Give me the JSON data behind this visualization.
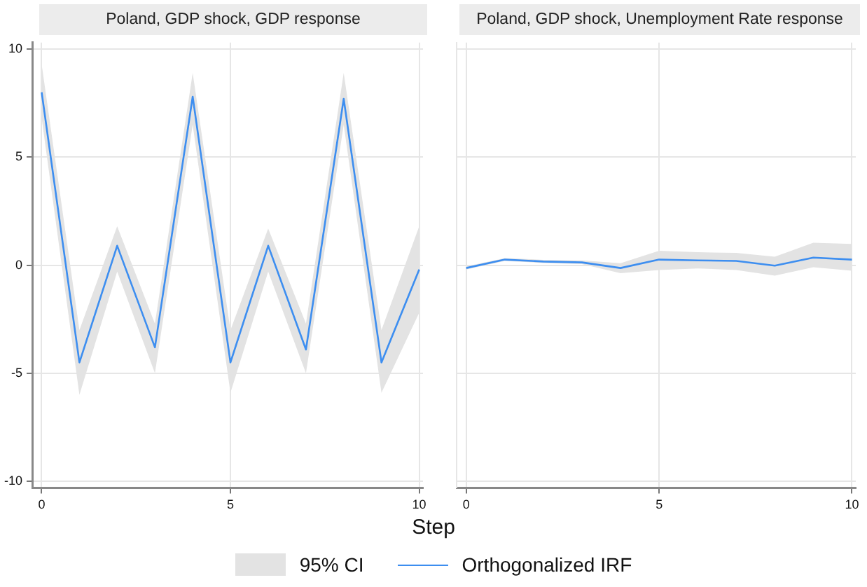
{
  "chart_data": [
    {
      "type": "line",
      "title": "Poland, GDP shock, GDP response",
      "xlabel": "Step",
      "annotations": [
        "95% CI"
      ],
      "x": [
        0,
        1,
        2,
        3,
        4,
        5,
        6,
        7,
        8,
        9,
        10
      ],
      "series": [
        {
          "name": "Orthogonalized IRF",
          "color": "#3d8ef0",
          "values": [
            8.0,
            -4.5,
            0.9,
            -3.8,
            7.8,
            -4.5,
            0.9,
            -3.9,
            7.7,
            -4.5,
            -0.2
          ],
          "lower": [
            6.8,
            -6.0,
            -0.3,
            -5.0,
            6.5,
            -5.9,
            -0.3,
            -5.0,
            6.5,
            -5.9,
            -2.2
          ],
          "upper": [
            9.3,
            -3.0,
            1.8,
            -2.7,
            8.9,
            -3.0,
            1.7,
            -2.7,
            8.9,
            -3.0,
            1.8
          ]
        }
      ],
      "xlim": [
        -0.25,
        10.1
      ],
      "xticks": [
        0,
        5,
        10
      ],
      "ylim": [
        -10.3,
        10.3
      ],
      "yticks": [
        -10,
        -5,
        0,
        5,
        10
      ],
      "grid": true,
      "legend": "bottom",
      "line_style": "solid",
      "marker": "none"
    },
    {
      "type": "line",
      "title": "Poland, GDP shock, Unemployment Rate response",
      "x": [
        0,
        1,
        2,
        3,
        4,
        5,
        6,
        7,
        8,
        9,
        10
      ],
      "series": [
        {
          "name": "Orthogonalized IRF",
          "color": "#3d8ef0",
          "values": [
            -0.13,
            0.26,
            0.17,
            0.13,
            -0.13,
            0.26,
            0.22,
            0.2,
            -0.02,
            0.35,
            0.26
          ],
          "lower": [
            -0.2,
            0.2,
            0.1,
            0.05,
            -0.37,
            -0.22,
            -0.15,
            -0.22,
            -0.48,
            -0.09,
            -0.26
          ],
          "upper": [
            -0.05,
            0.33,
            0.25,
            0.22,
            0.09,
            0.67,
            0.6,
            0.57,
            0.39,
            1.04,
            0.98
          ]
        }
      ],
      "xlim": [
        -0.25,
        10.1
      ],
      "xticks": [
        0,
        5,
        10
      ],
      "ylim": [
        -10.3,
        10.3
      ],
      "yticks": [
        -10,
        -5,
        0,
        5,
        10
      ],
      "grid": true,
      "tick_labels": "x",
      "line_style": "solid",
      "marker": "none"
    }
  ]
}
